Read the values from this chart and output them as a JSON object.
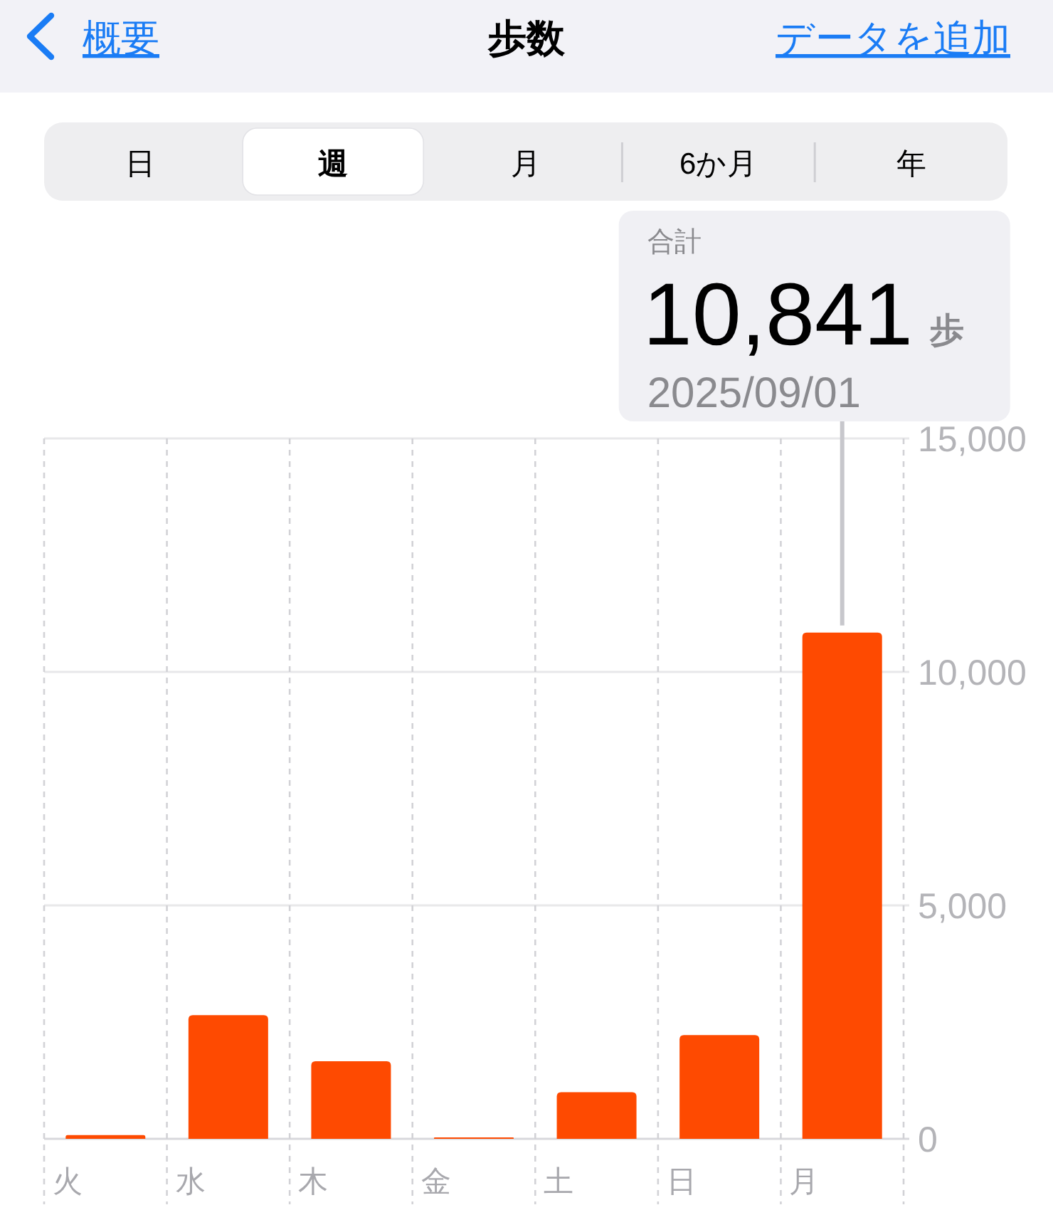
{
  "chart_data": {
    "type": "bar",
    "title": "歩数",
    "categories": [
      "火",
      "水",
      "木",
      "金",
      "土",
      "日",
      "月"
    ],
    "values": [
      80,
      2650,
      1660,
      30,
      1000,
      2220,
      10841
    ],
    "color": "#fe4a01",
    "value_labels": [
      null,
      null,
      null,
      null,
      null,
      null,
      "10,841"
    ],
    "ylim": [
      0,
      15000
    ],
    "yticks": [
      0,
      {
        "value": 5000,
        "label": "5,000"
      },
      {
        "value": 10000,
        "label": "10,000"
      },
      {
        "value": 15000,
        "label": "15,000"
      }
    ],
    "grid": true,
    "annotations": [
      "概要",
      "データを追加",
      "日",
      "週",
      "月",
      "6か月",
      "年",
      "合計",
      "歩",
      "2025/09/01"
    ]
  }
}
